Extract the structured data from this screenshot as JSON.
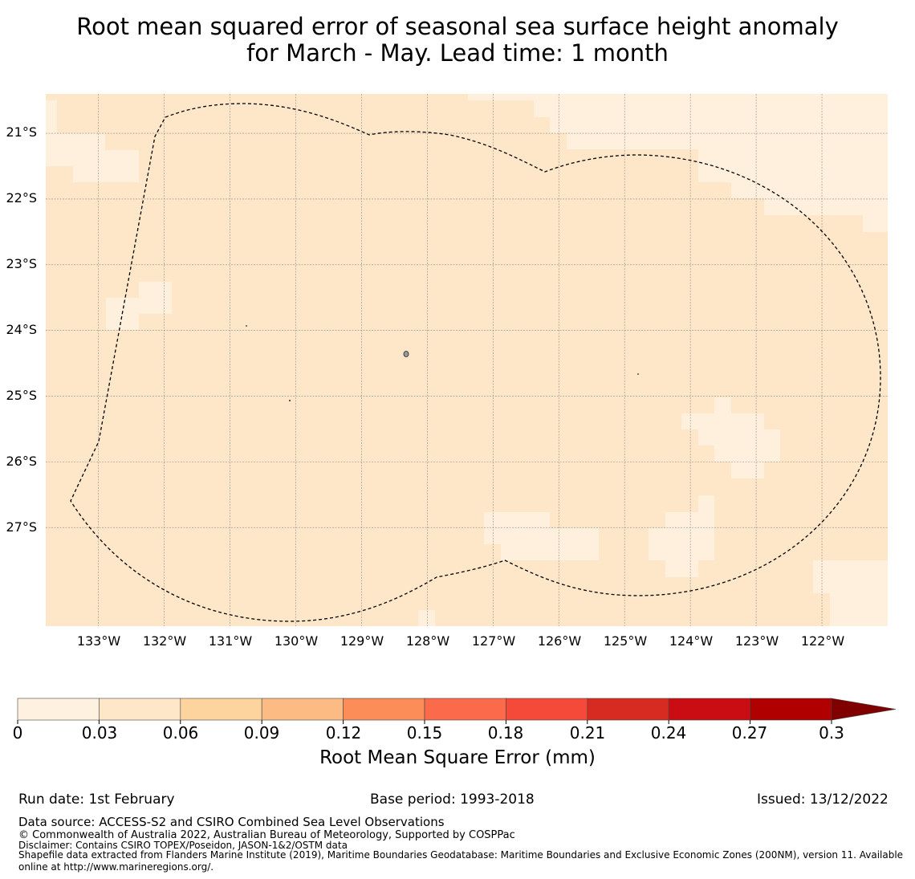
{
  "title": {
    "line1": "Root mean squared error of seasonal sea surface height anomaly",
    "line2": "for March - May. Lead time: 1 month"
  },
  "map": {
    "lat_labels": [
      "21°S",
      "22°S",
      "23°S",
      "24°S",
      "25°S",
      "26°S",
      "27°S"
    ],
    "lon_labels": [
      "133°W",
      "132°W",
      "131°W",
      "130°W",
      "129°W",
      "128°W",
      "127°W",
      "126°W",
      "125°W",
      "124°W",
      "123°W",
      "122°W"
    ],
    "lat_values": [
      -21,
      -22,
      -23,
      -24,
      -25,
      -26,
      -27
    ],
    "lon_values": [
      -133,
      -132,
      -131,
      -130,
      -129,
      -128,
      -127,
      -126,
      -125,
      -124,
      -123,
      -122
    ],
    "extent": {
      "lon_min": -133.8,
      "lon_max": -121.0,
      "lat_max": -20.4,
      "lat_min": -28.5
    },
    "field_note": "RMSE field mostly within 0.03–0.06 mm band, with scattered patches in 0–0.03 mm band",
    "base_color": "#fee6c8",
    "low_color": "#fff0de",
    "boundary": "Exclusive Economic Zone (200NM) boundary, dashed"
  },
  "colorbar": {
    "levels": [
      0,
      0.03,
      0.06,
      0.09,
      0.12,
      0.15,
      0.18,
      0.21,
      0.24,
      0.27,
      0.3
    ],
    "tick_labels": [
      "0",
      "0.03",
      "0.06",
      "0.09",
      "0.12",
      "0.15",
      "0.18",
      "0.21",
      "0.24",
      "0.27",
      "0.3"
    ],
    "colors": [
      "#fff1e0",
      "#fee6c8",
      "#fdd49e",
      "#fdbb84",
      "#fc8d59",
      "#fb6a4a",
      "#f54a3a",
      "#d72b22",
      "#c90d13",
      "#b00000",
      "#800000"
    ],
    "label": "Root Mean Square Error (mm)"
  },
  "footer": {
    "run_date": "Run date: 1st February",
    "base_period": "Base period: 1993-2018",
    "issued": "Issued: 13/12/2022",
    "data_source": "Data source: ACCESS-S2 and CSIRO Combined Sea Level Observations",
    "copyright": "© Commonwealth of Australia 2022, Australian Bureau of Meteorology, Supported by COSPPac",
    "disclaimer": "Disclaimer: Contains CSIRO TOPEX/Poseidon, JASON-1&2/OSTM data",
    "shapefile_line1": "Shapefile data extracted from Flanders Marine Institute (2019), Maritime Boundaries Geodatabase: Maritime Boundaries and Exclusive Economic Zones (200NM), version 11. Available",
    "shapefile_line2": "online at http://www.marineregions.org/."
  }
}
